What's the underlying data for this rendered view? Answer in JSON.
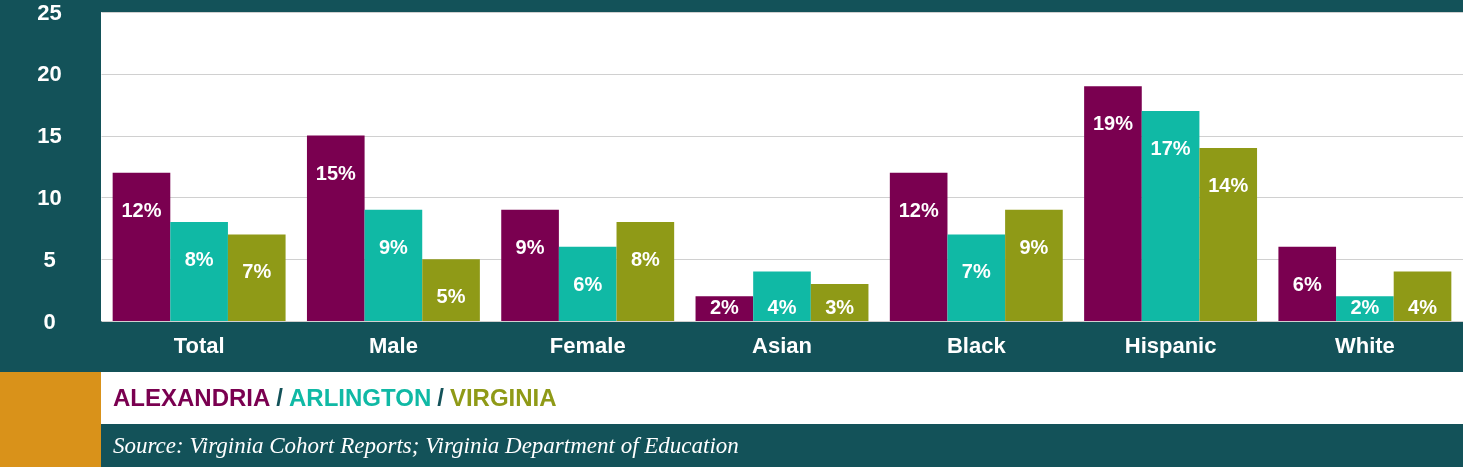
{
  "chart_data": {
    "type": "bar",
    "categories": [
      "Total",
      "Male",
      "Female",
      "Asian",
      "Black",
      "Hispanic",
      "White"
    ],
    "series": [
      {
        "name": "ALEXANDRIA",
        "color": "#7a0050",
        "values": [
          12,
          15,
          9,
          2,
          12,
          19,
          6
        ],
        "value_labels": [
          "12%",
          "15%",
          "9%",
          "2%",
          "12%",
          "19%",
          "6%"
        ]
      },
      {
        "name": "ARLINGTON",
        "color": "#10b9a5",
        "values": [
          8,
          9,
          6,
          4,
          7,
          17,
          2
        ],
        "value_labels": [
          "8%",
          "9%",
          "6%",
          "4%",
          "7%",
          "17%",
          "2%"
        ]
      },
      {
        "name": "VIRGINIA",
        "color": "#8f9a17",
        "values": [
          7,
          5,
          8,
          3,
          9,
          14,
          4
        ],
        "value_labels": [
          "7%",
          "5%",
          "8%",
          "3%",
          "9%",
          "14%",
          "4%"
        ]
      }
    ],
    "ylim": [
      0,
      25
    ],
    "yticks": [
      0,
      5,
      10,
      15,
      20,
      25
    ],
    "grid": "y",
    "legend": "bottom",
    "annotations": [
      "/",
      "/",
      "Source: Virginia Cohort Reports; Virginia Department of Education"
    ]
  }
}
